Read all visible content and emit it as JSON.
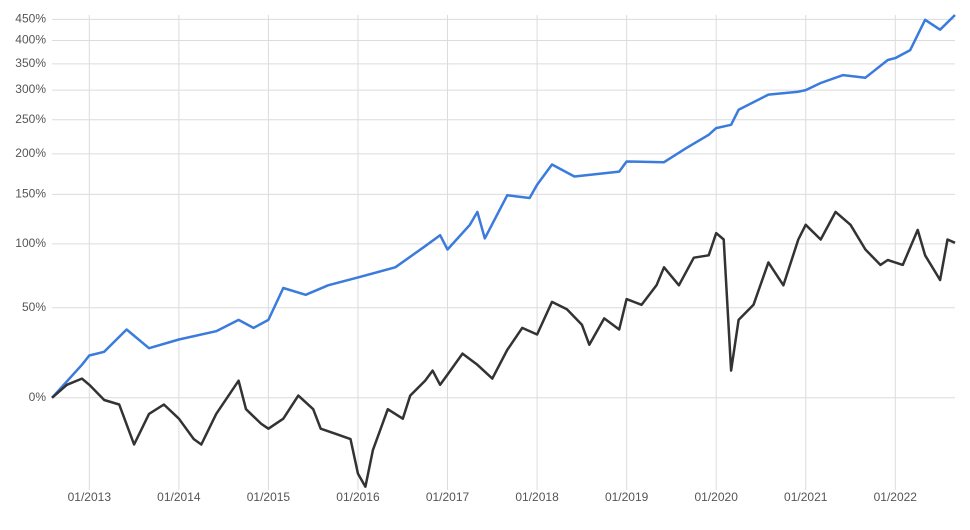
{
  "chart_data": {
    "type": "line",
    "yscale": "log",
    "grid": true,
    "xlim": [
      "2012-08",
      "2022-09"
    ],
    "xticks": [
      {
        "value": "2013-01",
        "label": "01/2013"
      },
      {
        "value": "2014-01",
        "label": "01/2014"
      },
      {
        "value": "2015-01",
        "label": "01/2015"
      },
      {
        "value": "2016-01",
        "label": "01/2016"
      },
      {
        "value": "2017-01",
        "label": "01/2017"
      },
      {
        "value": "2018-01",
        "label": "01/2018"
      },
      {
        "value": "2019-01",
        "label": "01/2019"
      },
      {
        "value": "2020-01",
        "label": "01/2020"
      },
      {
        "value": "2021-01",
        "label": "01/2021"
      },
      {
        "value": "2022-01",
        "label": "01/2022"
      }
    ],
    "ylim": [
      -34,
      461
    ],
    "yticks": [
      {
        "value": 0,
        "label": "0%"
      },
      {
        "value": 50,
        "label": "50%"
      },
      {
        "value": 100,
        "label": "100%"
      },
      {
        "value": 150,
        "label": "150%"
      },
      {
        "value": 200,
        "label": "200%"
      },
      {
        "value": 250,
        "label": "250%"
      },
      {
        "value": 300,
        "label": "300%"
      },
      {
        "value": 350,
        "label": "350%"
      },
      {
        "value": 400,
        "label": "400%"
      },
      {
        "value": 450,
        "label": "450%"
      }
    ],
    "series": [
      {
        "color": "#3a7bdc",
        "x": [
          "2012-08",
          "2012-12",
          "2013-01",
          "2013-03",
          "2013-06",
          "2013-09",
          "2014-01",
          "2014-06",
          "2014-09",
          "2014-11",
          "2015-01",
          "2015-03",
          "2015-06",
          "2015-09",
          "2016-01",
          "2016-06",
          "2016-10",
          "2016-12",
          "2017-01",
          "2017-04",
          "2017-05",
          "2017-06",
          "2017-09",
          "2017-12",
          "2018-01",
          "2018-03",
          "2018-06",
          "2018-12",
          "2019-01",
          "2019-06",
          "2019-09",
          "2019-12",
          "2020-01",
          "2020-03",
          "2020-04",
          "2020-08",
          "2020-12",
          "2021-01",
          "2021-03",
          "2021-06",
          "2021-09",
          "2021-12",
          "2022-01",
          "2022-03",
          "2022-05",
          "2022-07",
          "2022-09"
        ],
        "values": [
          0,
          16,
          21,
          23,
          36,
          25,
          30,
          35,
          42,
          37,
          42,
          64,
          59,
          66,
          72,
          80,
          98,
          108,
          95,
          118,
          131,
          105,
          149,
          146,
          161,
          186,
          171,
          177,
          190,
          189,
          208,
          227,
          237,
          242,
          266,
          292,
          297,
          300,
          313,
          328,
          323,
          358,
          362,
          379,
          449,
          425,
          461
        ]
      },
      {
        "color": "#333333",
        "x": [
          "2012-08",
          "2012-10",
          "2012-12",
          "2013-01",
          "2013-03",
          "2013-05",
          "2013-07",
          "2013-09",
          "2013-11",
          "2014-01",
          "2014-03",
          "2014-04",
          "2014-06",
          "2014-09",
          "2014-10",
          "2014-12",
          "2015-01",
          "2015-03",
          "2015-05",
          "2015-07",
          "2015-08",
          "2015-10",
          "2015-12",
          "2016-01",
          "2016-02",
          "2016-03",
          "2016-05",
          "2016-07",
          "2016-08",
          "2016-10",
          "2016-11",
          "2016-12",
          "2017-01",
          "2017-03",
          "2017-05",
          "2017-07",
          "2017-09",
          "2017-11",
          "2018-01",
          "2018-03",
          "2018-05",
          "2018-07",
          "2018-08",
          "2018-10",
          "2018-12",
          "2019-01",
          "2019-03",
          "2019-05",
          "2019-06",
          "2019-08",
          "2019-10",
          "2019-12",
          "2020-01",
          "2020-02",
          "2020-03",
          "2020-04",
          "2020-06",
          "2020-08",
          "2020-10",
          "2020-12",
          "2021-01",
          "2021-03",
          "2021-05",
          "2021-07",
          "2021-09",
          "2021-11",
          "2021-12",
          "2022-02",
          "2022-04",
          "2022-05",
          "2022-07",
          "2022-08",
          "2022-09"
        ],
        "values": [
          0,
          6,
          9,
          6,
          -1,
          -3,
          -19,
          -7,
          -3,
          -9,
          -17,
          -19,
          -7,
          8,
          -5,
          -11,
          -13,
          -9,
          1,
          -5,
          -13,
          -15,
          -17,
          -29,
          -33,
          -21,
          -5,
          -9,
          1,
          8,
          13,
          6,
          11,
          22,
          16,
          9,
          24,
          37,
          33,
          54,
          49,
          39,
          27,
          43,
          36,
          56,
          52,
          66,
          80,
          66,
          88,
          90,
          110,
          104,
          13,
          42,
          52,
          84,
          66,
          104,
          118,
          104,
          131,
          118,
          95,
          82,
          86,
          82,
          113,
          90,
          70,
          104,
          101
        ]
      }
    ]
  }
}
